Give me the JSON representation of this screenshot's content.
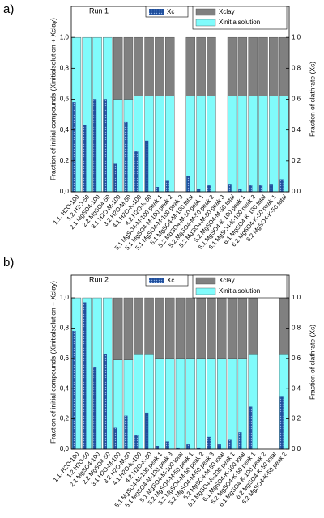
{
  "chart_data": [
    {
      "type": "bar",
      "stacked": true,
      "panel_label": "a)",
      "title": "Run 1",
      "ylabel": "Fraction of initial compounds (Xinitialsolution + Xclay)",
      "y2label": "Fraction of clathrate (Xc)",
      "categories": [
        "1.1. H2O-100",
        "1.2 H2O-50",
        "2.1 MgSO4-100",
        "2.2 MgSO4-50",
        "3.1 H2O-M-100",
        "3.2 H2O-M-50",
        "4.1 H2O-K-100",
        "4.2 H2O-K-50",
        "5.1 MgSO4-M-100 peak 1",
        "5.1 MgSO4-M-100 peak 2",
        "5.1 MgSO4-M-100 peak 3",
        "5.1 MgSO4-M-100 total",
        "5.2 MgSO4-M-50 peak 1",
        "5.2 MgSO4-M-50 peak 2",
        "5.2 MgSO4-M-50 peak 3",
        "5.2 MgSO4-M-50 total",
        "6.1 MgSO4-K-100 peak 1",
        "6.1 MgSO4-K-100 peak 2",
        "6.1 MgSO4-K-100 total",
        "6.2 MgSO4-K-50 peak 1",
        "6.2 MgSO4-K-50 total"
      ],
      "series": [
        {
          "name": "Xinitialsolution",
          "color": "#80fbfb",
          "values": [
            1,
            1,
            1,
            1,
            0.6,
            0.6,
            0.62,
            0.62,
            0.62,
            0.62,
            null,
            0.62,
            0.62,
            0.62,
            null,
            0.62,
            0.62,
            0.62,
            0.62,
            0.62,
            0.62
          ]
        },
        {
          "name": "Xclay",
          "color": "#808080",
          "values": [
            0,
            0,
            0,
            0,
            0.4,
            0.4,
            0.38,
            0.38,
            0.38,
            0.38,
            null,
            0.38,
            0.38,
            0.38,
            null,
            0.38,
            0.38,
            0.38,
            0.38,
            0.38,
            0.38
          ]
        },
        {
          "name": "Xc",
          "color": "#1f4e9c",
          "axis": "y2",
          "values": [
            0.58,
            0.43,
            0.6,
            0.6,
            0.18,
            0.45,
            0.26,
            0.33,
            0.03,
            0.07,
            null,
            0.1,
            0.02,
            0.04,
            null,
            0.05,
            0.02,
            0.04,
            0.04,
            0.05,
            0.08
          ]
        }
      ],
      "ylim": [
        0,
        1.2
      ],
      "y2lim": [
        0,
        1.2
      ],
      "yticks": [
        {
          "value": 0,
          "label": "0,0"
        },
        {
          "value": 0.2,
          "label": "0,2"
        },
        {
          "value": 0.4,
          "label": "0,4"
        },
        {
          "value": 0.6,
          "label": "0,6"
        },
        {
          "value": 0.8,
          "label": "0,8"
        },
        {
          "value": 1,
          "label": "1,0"
        }
      ],
      "y2ticks": [
        {
          "value": 0,
          "label": "0,0"
        },
        {
          "value": 0.2,
          "label": "0,2"
        },
        {
          "value": 0.4,
          "label": "0,4"
        },
        {
          "value": 0.6,
          "label": "0,6"
        },
        {
          "value": 0.8,
          "label": "0,8"
        },
        {
          "value": 1,
          "label": "1,0"
        }
      ]
    },
    {
      "type": "bar",
      "stacked": true,
      "panel_label": "b)",
      "title": "Run 2",
      "ylabel": "Fraction of initial compounds (Xinitialsolution + Xclay)",
      "y2label": "Fraction of clathrate (Xc)",
      "categories": [
        "1.1. H2O-100",
        "1.2 H2O-50",
        "2.1 MgSO4-100",
        "2.2 MgSO4-50",
        "3.1 H2O-M-100",
        "3.2 H2O-M-50",
        "4.1 H2O-K-100",
        "4.2 H2O-K-50",
        "5.1 MgSO4-M-100 peak 1",
        "5.1 MgSO4-M-100 peak 3",
        "5.1 MgSO4-M-100 total",
        "5.2 MgSO4-M-50 peak 1",
        "5.2 MgSO4-M-50 peak 2",
        "5.2 MgSO4-M-50 peak 3",
        "5.2 MgSO4-M-50 total",
        "6.1 MgSO4-K-100 peak 1",
        "6.1 MgSO4-K-100 total",
        "6.2 MgSO4-K-50 peak 1",
        "6.1 MgSO4-K-100 peak 2",
        "6.2 MgSO4-K-50 total",
        "6.2 MgSO4-K-50 peak 2"
      ],
      "series": [
        {
          "name": "Xinitialsolution",
          "color": "#80fbfb",
          "values": [
            1,
            1,
            1,
            1,
            0.59,
            0.59,
            0.63,
            0.63,
            0.6,
            0.6,
            0.6,
            0.6,
            0.6,
            0.6,
            0.6,
            0.6,
            0.6,
            0.63,
            null,
            null,
            0.63
          ]
        },
        {
          "name": "Xclay",
          "color": "#808080",
          "values": [
            0,
            0,
            0,
            0,
            0.41,
            0.41,
            0.37,
            0.37,
            0.4,
            0.4,
            0.4,
            0.4,
            0.4,
            0.4,
            0.4,
            0.4,
            0.4,
            0.37,
            null,
            null,
            0.37
          ]
        },
        {
          "name": "Xc",
          "color": "#1f4e9c",
          "axis": "y2",
          "values": [
            0.78,
            0.97,
            0.54,
            0.63,
            0.14,
            0.22,
            0.09,
            0.24,
            0.02,
            0.05,
            0.01,
            0.03,
            0.01,
            0.08,
            0.03,
            0.06,
            0.11,
            0.28,
            null,
            null,
            0.35
          ]
        }
      ],
      "ylim": [
        0,
        1.15
      ],
      "y2lim": [
        0,
        1.15
      ],
      "yticks": [
        {
          "value": 0,
          "label": "0,0"
        },
        {
          "value": 0.2,
          "label": "0,2"
        },
        {
          "value": 0.4,
          "label": "0,4"
        },
        {
          "value": 0.6,
          "label": "0,6"
        },
        {
          "value": 0.8,
          "label": "0,8"
        },
        {
          "value": 1,
          "label": "1,0"
        }
      ],
      "y2ticks": [
        {
          "value": 0,
          "label": "0,0"
        },
        {
          "value": 0.2,
          "label": "0,2"
        },
        {
          "value": 0.4,
          "label": "0,4"
        },
        {
          "value": 0.6,
          "label": "0,6"
        },
        {
          "value": 0.8,
          "label": "0,8"
        },
        {
          "value": 1,
          "label": "1,0"
        }
      ]
    }
  ]
}
